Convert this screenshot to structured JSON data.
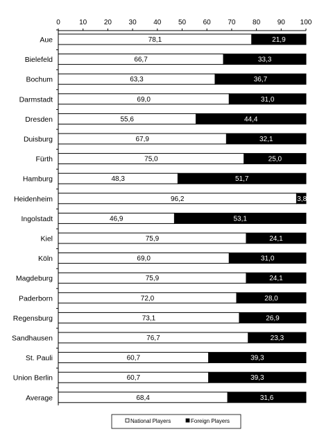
{
  "chart_data": {
    "type": "bar",
    "orientation": "horizontal",
    "stacked": true,
    "categories": [
      "Aue",
      "Bielefeld",
      "Bochum",
      "Darmstadt",
      "Dresden",
      "Duisburg",
      "Fürth",
      "Hamburg",
      "Heidenheim",
      "Ingolstadt",
      "Kiel",
      "Köln",
      "Magdeburg",
      "Paderborn",
      "Regensburg",
      "Sandhausen",
      "St. Pauli",
      "Union Berlin",
      "Average"
    ],
    "series": [
      {
        "name": "National Players",
        "color": "#ffffff",
        "values": [
          78.1,
          66.7,
          63.3,
          69.0,
          55.6,
          67.9,
          75.0,
          48.3,
          96.2,
          46.9,
          75.9,
          69.0,
          75.9,
          72.0,
          73.1,
          76.7,
          60.7,
          60.7,
          68.4
        ],
        "labels": [
          "78,1",
          "66,7",
          "63,3",
          "69,0",
          "55,6",
          "67,9",
          "75,0",
          "48,3",
          "96,2",
          "46,9",
          "75,9",
          "69,0",
          "75,9",
          "72,0",
          "73,1",
          "76,7",
          "60,7",
          "60,7",
          "68,4"
        ]
      },
      {
        "name": "Foreign Players",
        "color": "#000000",
        "values": [
          21.9,
          33.3,
          36.7,
          31.0,
          44.4,
          32.1,
          25.0,
          51.7,
          3.8,
          53.1,
          24.1,
          31.0,
          24.1,
          28.0,
          26.9,
          23.3,
          39.3,
          39.3,
          31.6
        ],
        "labels": [
          "21,9",
          "33,3",
          "36,7",
          "31,0",
          "44,4",
          "32,1",
          "25,0",
          "51,7",
          "3,8",
          "53,1",
          "24,1",
          "31,0",
          "24,1",
          "28,0",
          "26,9",
          "23,3",
          "39,3",
          "39,3",
          "31,6"
        ]
      }
    ],
    "xlim": [
      0,
      100
    ],
    "xticks": [
      "0",
      "10",
      "20",
      "30",
      "40",
      "50",
      "60",
      "70",
      "80",
      "90",
      "100"
    ],
    "x_axis_position": "top",
    "grid": false,
    "legend": {
      "position": "bottom",
      "entries": [
        "National Players",
        "Foreign Players"
      ]
    }
  }
}
